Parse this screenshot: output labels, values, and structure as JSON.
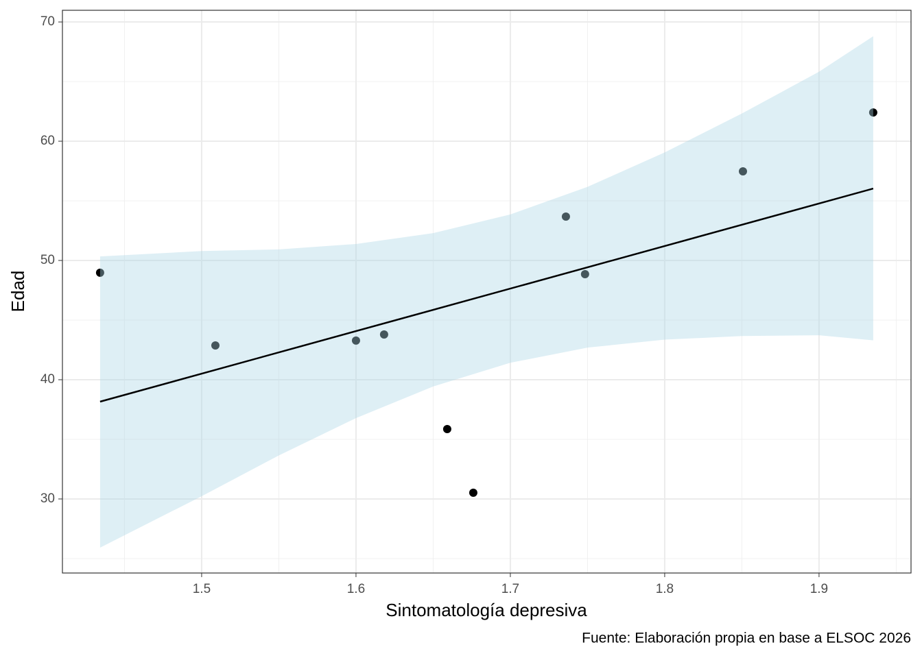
{
  "chart_data": {
    "type": "scatter",
    "x_label": "Sintomatología depresiva",
    "y_label": "Edad",
    "caption": "Fuente: Elaboración propia en base a ELSOC 2026",
    "x": [
      1.4342,
      1.5089,
      1.6,
      1.6182,
      1.6591,
      1.676,
      1.736,
      1.7484,
      1.8507,
      1.9351
    ],
    "series": [
      {
        "values": [
          48.97,
          42.87,
          43.28,
          43.79,
          35.86,
          30.52,
          53.68,
          48.85,
          57.47,
          62.41
        ],
        "color": "#000000"
      }
    ],
    "fit": {
      "x": [
        1.4342,
        1.9351
      ],
      "y": [
        38.16,
        56.03
      ],
      "color": "#000000"
    },
    "ribbon": {
      "x": [
        1.4342,
        1.5,
        1.55,
        1.6,
        1.65,
        1.7,
        1.75,
        1.8,
        1.85,
        1.9,
        1.9351
      ],
      "lower": [
        25.92,
        30.23,
        33.65,
        36.78,
        39.43,
        41.42,
        42.69,
        43.36,
        43.66,
        43.73,
        43.3
      ],
      "upper": [
        50.34,
        50.79,
        50.93,
        51.38,
        52.29,
        53.86,
        56.17,
        59.06,
        62.32,
        65.83,
        68.8
      ],
      "color": "#add8e6",
      "opacity": 0.4
    },
    "xlim": [
      1.4098,
      1.9596
    ],
    "ylim": [
      23.79,
      70.98
    ],
    "xticks": [
      1.5,
      1.6,
      1.7,
      1.8,
      1.9
    ],
    "yticks": [
      30,
      40,
      50,
      60,
      70
    ],
    "grid": true
  }
}
